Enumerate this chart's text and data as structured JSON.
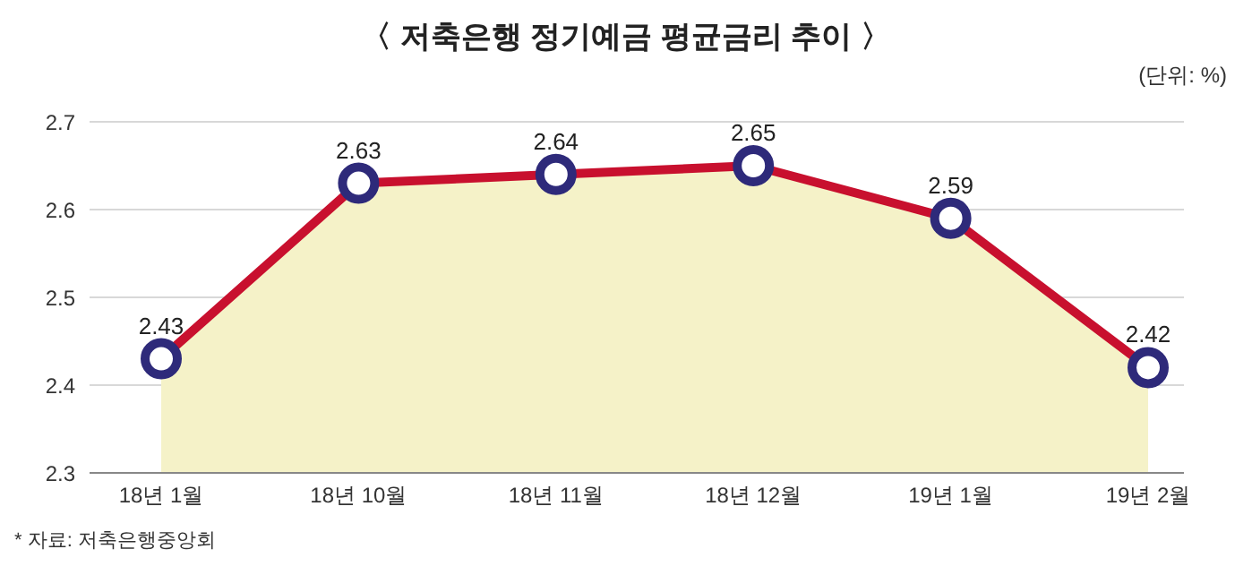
{
  "chart_data": {
    "type": "area",
    "title": "〈 저축은행 정기예금 평균금리 추이 〉",
    "ylabel": "(단위: %)",
    "categories": [
      "18년 1월",
      "18년 10월",
      "18년 11월",
      "18년 12월",
      "19년 1월",
      "19년 2월"
    ],
    "series": [
      {
        "color": "#c8102e",
        "values": [
          2.43,
          2.63,
          2.64,
          2.65,
          2.59,
          2.42
        ]
      }
    ],
    "ylim": [
      2.3,
      2.7
    ],
    "yticks": [
      2.3,
      2.4,
      2.5,
      2.6,
      2.7
    ],
    "grid": "y",
    "marker": "circle",
    "data_labels": true,
    "annotations": [
      "* 자료: 저축은행중앙회"
    ]
  }
}
